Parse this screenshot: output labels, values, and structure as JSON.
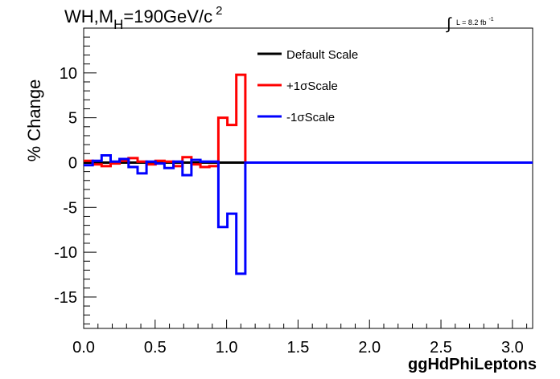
{
  "chart_data": {
    "type": "line",
    "title_parts": {
      "main": "WH,M",
      "sub": "H",
      "rest": "=190GeV/c",
      "sup": "2"
    },
    "lumi_parts": {
      "integral": "∫",
      "text": "L = 8.2 fb",
      "sup": "-1"
    },
    "xlabel": "ggHdPhiLeptons",
    "ylabel": "% Change",
    "xlim": [
      0,
      3.1416
    ],
    "ylim": [
      -18.5,
      15
    ],
    "x_ticks": [
      0.0,
      0.5,
      1.0,
      1.5,
      2.0,
      2.5,
      3.0
    ],
    "x_tick_labels": [
      "0.0",
      "0.5",
      "1.0",
      "1.5",
      "2.0",
      "2.5",
      "3.0"
    ],
    "y_ticks": [
      -15,
      -10,
      -5,
      0,
      5,
      10
    ],
    "y_tick_labels": [
      "-15",
      "-10",
      "-5",
      "0",
      "5",
      "10"
    ],
    "bin_edges": [
      0,
      0.0628,
      0.1257,
      0.1885,
      0.2513,
      0.3142,
      0.377,
      0.4398,
      0.5027,
      0.5655,
      0.6283,
      0.6912,
      0.754,
      0.8168,
      0.8796,
      0.9425,
      1.0053,
      1.0681,
      1.131,
      3.1416
    ],
    "legend_position": "top-center",
    "series": [
      {
        "name": "Default Scale",
        "color": "#000000",
        "values": [
          0,
          0,
          0,
          0,
          0,
          0,
          0,
          0,
          0,
          0,
          0,
          0,
          0,
          0,
          0,
          0,
          0,
          0,
          0
        ]
      },
      {
        "name": "+1σScale",
        "color": "#ff0000",
        "values": [
          0.2,
          -0.2,
          -0.4,
          -0.1,
          0.2,
          0.5,
          0.1,
          -0.2,
          0.2,
          0.1,
          -0.4,
          0.6,
          -0.2,
          -0.5,
          -0.4,
          5.0,
          4.2,
          9.8,
          0
        ]
      },
      {
        "name": "-1σScale",
        "color": "#0000ff",
        "values": [
          -0.3,
          0.2,
          0.8,
          0.1,
          0.4,
          -0.5,
          -1.2,
          0.1,
          -0.1,
          -0.6,
          0.1,
          -1.4,
          0.3,
          0.1,
          0.1,
          -7.2,
          -5.7,
          -12.4,
          0
        ]
      }
    ]
  }
}
